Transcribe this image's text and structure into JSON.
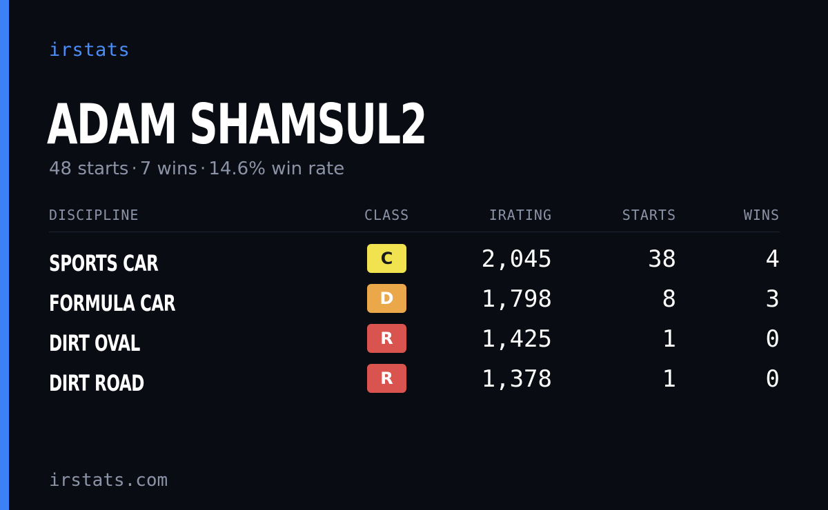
{
  "brand": "irstats",
  "player": {
    "name": "ADAM SHAMSUL2",
    "starts": "48 starts",
    "wins": "7 wins",
    "win_rate": "14.6% win rate",
    "separator": "·"
  },
  "table": {
    "headers": {
      "discipline": "DISCIPLINE",
      "class": "CLASS",
      "irating": "IRATING",
      "starts": "STARTS",
      "wins": "WINS"
    },
    "rows": [
      {
        "discipline": "SPORTS CAR",
        "class": "C",
        "class_bg": "#f1e34f",
        "class_fg": "#1a1a1a",
        "irating": "2,045",
        "starts": "38",
        "wins": "4"
      },
      {
        "discipline": "FORMULA CAR",
        "class": "D",
        "class_bg": "#eba84a",
        "class_fg": "#ffffff",
        "irating": "1,798",
        "starts": "8",
        "wins": "3"
      },
      {
        "discipline": "DIRT OVAL",
        "class": "R",
        "class_bg": "#d9534f",
        "class_fg": "#ffffff",
        "irating": "1,425",
        "starts": "1",
        "wins": "0"
      },
      {
        "discipline": "DIRT ROAD",
        "class": "R",
        "class_bg": "#d9534f",
        "class_fg": "#ffffff",
        "irating": "1,378",
        "starts": "1",
        "wins": "0"
      }
    ]
  },
  "footer": "irstats.com",
  "colors": {
    "background": "#0a0c13",
    "accent": "#3b82f6",
    "muted": "#8b93a7"
  }
}
